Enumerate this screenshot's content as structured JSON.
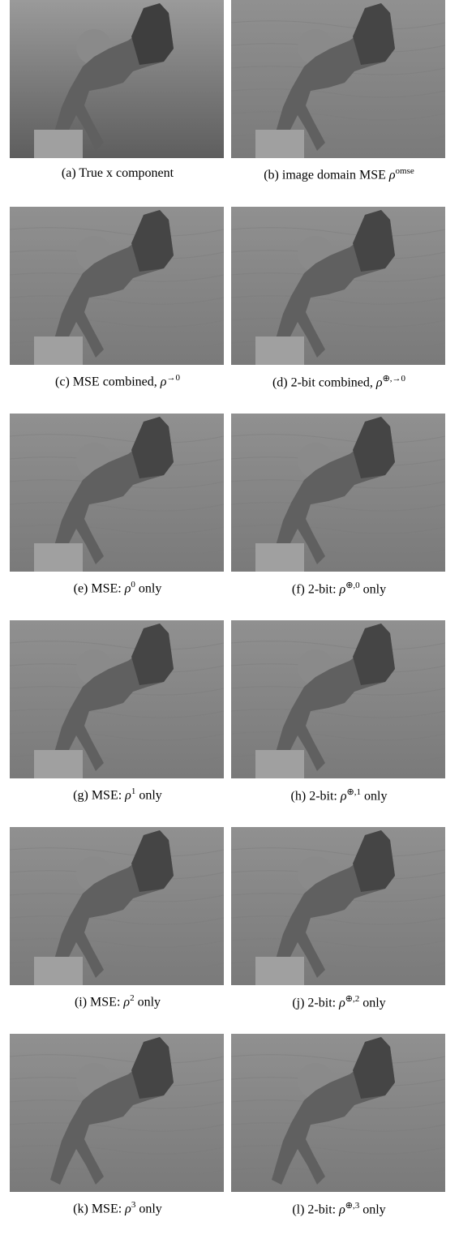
{
  "panels": [
    {
      "label": "(a) True x component"
    },
    {
      "label": "(b) image domain MSE ",
      "symbol": "ρ",
      "sup": "omse"
    },
    {
      "label": "(c) MSE combined, ",
      "symbol": "ρ",
      "sup": "→0"
    },
    {
      "label": "(d) 2-bit combined, ",
      "symbol": "ρ",
      "sup": "⊕,→0"
    },
    {
      "label": "(e) MSE: ",
      "symbol": "ρ",
      "sup": "0",
      "after": " only"
    },
    {
      "label": "(f) 2-bit: ",
      "symbol": "ρ",
      "sup": "⊕,0",
      "after": " only"
    },
    {
      "label": "(g) MSE: ",
      "symbol": "ρ",
      "sup": "1",
      "after": " only"
    },
    {
      "label": "(h) 2-bit: ",
      "symbol": "ρ",
      "sup": "⊕,1",
      "after": " only"
    },
    {
      "label": "(i) MSE: ",
      "symbol": "ρ",
      "sup": "2",
      "after": " only"
    },
    {
      "label": "(j) 2-bit: ",
      "symbol": "ρ",
      "sup": "⊕,2",
      "after": " only"
    },
    {
      "label": "(k) MSE: ",
      "symbol": "ρ",
      "sup": "3",
      "after": " only"
    },
    {
      "label": "(l) 2-bit: ",
      "symbol": "ρ",
      "sup": "⊕,3",
      "after": " only"
    }
  ]
}
